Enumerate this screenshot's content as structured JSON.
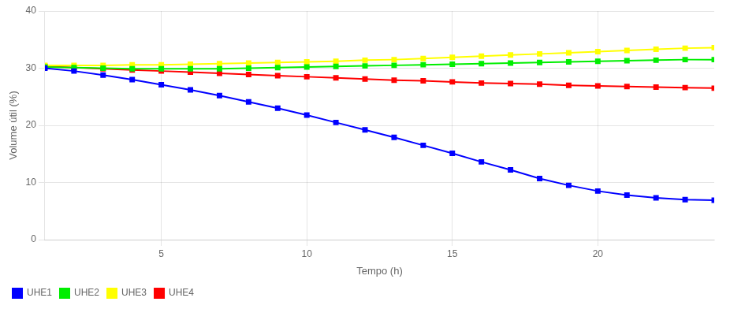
{
  "chart_data": {
    "type": "line",
    "title": "",
    "xlabel": "Tempo (h)",
    "ylabel": "Volume útil (%)",
    "x": [
      1,
      2,
      3,
      4,
      5,
      6,
      7,
      8,
      9,
      10,
      11,
      12,
      13,
      14,
      15,
      16,
      17,
      18,
      19,
      20,
      21,
      22,
      23,
      24
    ],
    "series": [
      {
        "name": "UHE1",
        "color": "#0000ff",
        "marker": "square",
        "values": [
          30.0,
          29.5,
          28.8,
          28.0,
          27.1,
          26.2,
          25.2,
          24.1,
          23.0,
          21.8,
          20.5,
          19.2,
          17.9,
          16.5,
          15.1,
          13.6,
          12.2,
          10.7,
          9.5,
          8.5,
          7.8,
          7.3,
          7.0,
          6.9
        ]
      },
      {
        "name": "UHE2",
        "color": "#00ee00",
        "marker": "square",
        "values": [
          30.2,
          30.1,
          30.0,
          29.9,
          29.9,
          29.9,
          29.9,
          30.0,
          30.1,
          30.2,
          30.3,
          30.4,
          30.5,
          30.6,
          30.7,
          30.8,
          30.9,
          31.0,
          31.1,
          31.2,
          31.3,
          31.4,
          31.5,
          31.5
        ]
      },
      {
        "name": "UHE3",
        "color": "#ffff00",
        "marker": "square",
        "values": [
          30.5,
          30.5,
          30.5,
          30.6,
          30.6,
          30.7,
          30.8,
          30.9,
          31.0,
          31.1,
          31.2,
          31.4,
          31.5,
          31.7,
          31.9,
          32.1,
          32.3,
          32.5,
          32.7,
          32.9,
          33.1,
          33.3,
          33.5,
          33.6
        ]
      },
      {
        "name": "UHE4",
        "color": "#ff0000",
        "marker": "square",
        "values": [
          30.3,
          30.1,
          29.9,
          29.7,
          29.5,
          29.3,
          29.1,
          28.9,
          28.7,
          28.5,
          28.3,
          28.1,
          27.9,
          27.8,
          27.6,
          27.4,
          27.3,
          27.2,
          27.0,
          26.9,
          26.8,
          26.7,
          26.6,
          26.5
        ]
      }
    ],
    "xlim": [
      1,
      24
    ],
    "xticks": [
      5,
      10,
      15,
      20
    ],
    "ylim": [
      0,
      40
    ],
    "yticks": [
      0,
      10,
      20,
      30,
      40
    ],
    "grid": true,
    "legend": "lower left"
  }
}
